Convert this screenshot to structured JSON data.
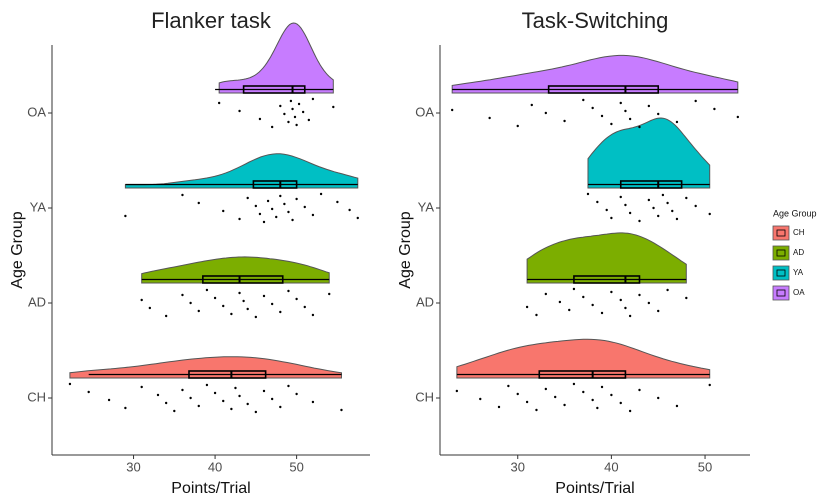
{
  "chart_data": [
    {
      "type": "raincloud",
      "title": "Flanker task",
      "xlabel": "Points/Trial",
      "ylabel": "Age Group",
      "categories": [
        "CH",
        "AD",
        "YA",
        "OA"
      ],
      "xlim": [
        20,
        59
      ],
      "xticks": [
        30,
        40,
        50
      ],
      "series": [
        {
          "color": "#F8766D",
          "box": {
            "min": 24.5,
            "q1": 36.8,
            "median": 42,
            "q3": 46.2,
            "max": 55.5
          },
          "points": [
            22.2,
            24.5,
            27,
            29,
            31,
            33,
            34,
            35,
            36,
            37,
            38,
            39,
            40,
            41,
            42,
            42.5,
            43,
            44,
            45,
            46,
            47,
            48,
            49,
            50,
            52,
            55.5
          ]
        },
        {
          "color": "#7CAE00",
          "box": {
            "min": 31,
            "q1": 38.5,
            "median": 43,
            "q3": 48.3,
            "max": 54
          },
          "points": [
            31,
            32,
            34,
            36,
            37,
            38,
            39,
            40,
            41,
            42,
            43,
            43.5,
            44,
            45,
            46,
            47,
            48,
            49,
            50,
            51,
            52,
            54
          ]
        },
        {
          "color": "#00BFC4",
          "box": {
            "min": 29,
            "q1": 44.7,
            "median": 48,
            "q3": 50,
            "max": 57.5
          },
          "points": [
            29,
            36,
            38,
            41,
            43,
            44,
            45,
            45.5,
            46,
            46.5,
            47,
            47.5,
            48,
            48.5,
            49,
            49.5,
            50,
            51,
            52,
            53,
            55,
            56.5,
            57.5
          ]
        },
        {
          "color": "#C77CFF",
          "box": {
            "min": 40,
            "q1": 43.5,
            "median": 49.5,
            "q3": 51,
            "max": 54.5
          },
          "points": [
            40.5,
            43,
            45.5,
            47,
            48,
            48.5,
            49,
            49.3,
            49.5,
            49.8,
            50,
            50.3,
            50.8,
            51.5,
            52,
            54.5
          ]
        }
      ]
    },
    {
      "type": "raincloud",
      "title": "Task-Switching",
      "xlabel": "Points/Trial",
      "ylabel": "Age Group",
      "categories": [
        "CH",
        "AD",
        "YA",
        "OA"
      ],
      "xlim": [
        21.7,
        54.8
      ],
      "xticks": [
        30,
        40,
        50
      ],
      "legend": {
        "title": "Age Group",
        "position": "right"
      },
      "series": [
        {
          "color": "#F8766D",
          "box": {
            "min": 23.5,
            "q1": 32.3,
            "median": 38,
            "q3": 41.5,
            "max": 50.5
          },
          "points": [
            23.5,
            26,
            28,
            29,
            30,
            31,
            32,
            33,
            34,
            35,
            36,
            37,
            38,
            38.5,
            39,
            40,
            41,
            42,
            43,
            45,
            47,
            50.5
          ]
        },
        {
          "color": "#7CAE00",
          "box": {
            "min": 31,
            "q1": 36,
            "median": 41.5,
            "q3": 43,
            "max": 48
          },
          "points": [
            31,
            32,
            33,
            34.5,
            35.5,
            36,
            37,
            38,
            39,
            40,
            41,
            41.5,
            42,
            43,
            44,
            45,
            46,
            48
          ]
        },
        {
          "color": "#00BFC4",
          "box": {
            "min": 37.5,
            "q1": 41,
            "median": 45,
            "q3": 47.5,
            "max": 50.5
          },
          "points": [
            37.5,
            38.5,
            39.5,
            40,
            41,
            41.5,
            42,
            43,
            44,
            44.5,
            45,
            45.5,
            46,
            46.5,
            47,
            48,
            49,
            50.5
          ]
        },
        {
          "color": "#C77CFF",
          "box": {
            "min": 23,
            "q1": 33.3,
            "median": 41.5,
            "q3": 45,
            "max": 53.5
          },
          "points": [
            23,
            27,
            30,
            31.5,
            33,
            35,
            37,
            38,
            39,
            40,
            41,
            41.5,
            42,
            43,
            44,
            45,
            47,
            49,
            51,
            53.5
          ]
        }
      ]
    }
  ]
}
